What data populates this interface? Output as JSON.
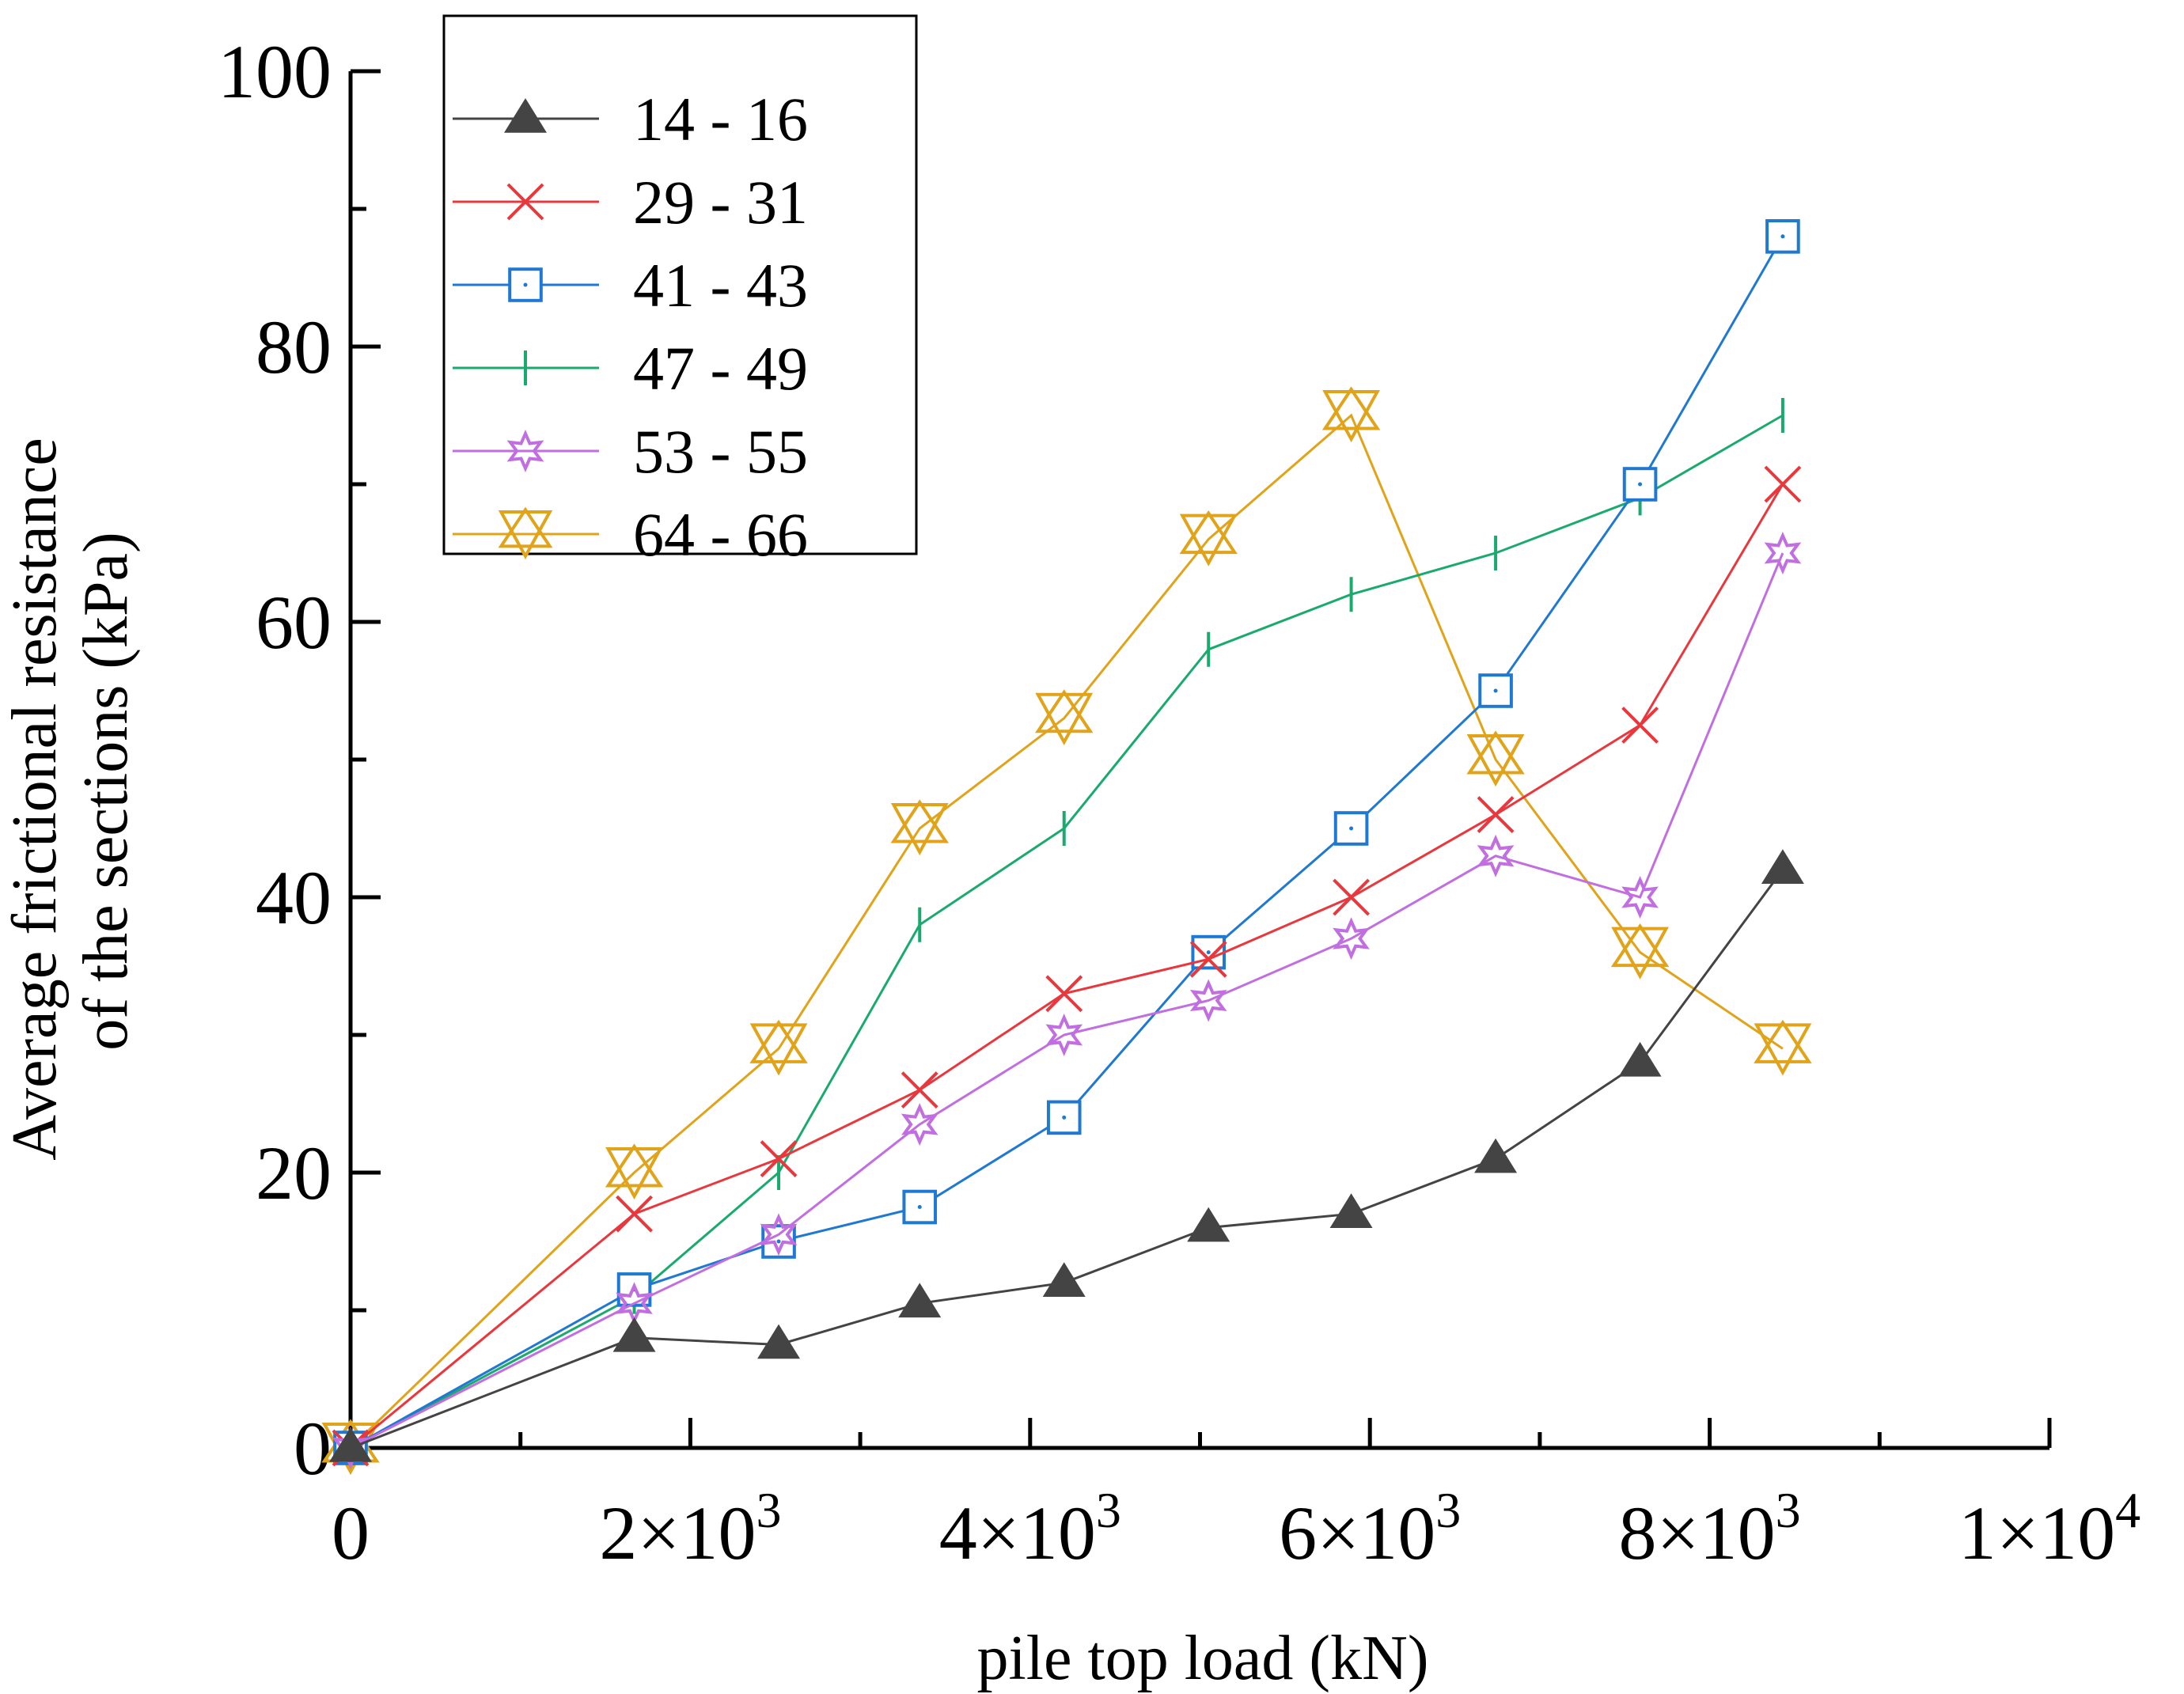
{
  "chart_data": {
    "type": "line",
    "title": "",
    "xlabel": "pile top load (kN)",
    "ylabel_line1": "Average frictional resistance",
    "ylabel_line2": "of the sections (kPa)",
    "xlim": [
      0,
      10000
    ],
    "ylim": [
      0,
      100
    ],
    "x_ticks": [
      {
        "value": 0,
        "mantissa": "0",
        "exponent": ""
      },
      {
        "value": 2000,
        "mantissa": "2×10",
        "exponent": "3"
      },
      {
        "value": 4000,
        "mantissa": "4×10",
        "exponent": "3"
      },
      {
        "value": 6000,
        "mantissa": "6×10",
        "exponent": "3"
      },
      {
        "value": 8000,
        "mantissa": "8×10",
        "exponent": "3"
      },
      {
        "value": 10000,
        "mantissa": "1×10",
        "exponent": "4"
      }
    ],
    "y_ticks": [
      0,
      20,
      40,
      60,
      80,
      100
    ],
    "grid": false,
    "legend_position": "top-left",
    "x": [
      0,
      1670,
      2520,
      3350,
      4200,
      5050,
      5890,
      6740,
      7590,
      8430
    ],
    "series": [
      {
        "name": "14 - 16",
        "color": "#444444",
        "marker": "triangle-filled",
        "values": [
          0,
          8,
          7.5,
          10.5,
          12,
          16,
          17,
          21,
          28,
          42
        ]
      },
      {
        "name": "29 - 31",
        "color": "#e8383d",
        "marker": "x",
        "values": [
          0,
          17,
          21,
          26,
          33,
          35.5,
          40,
          46,
          52.5,
          70
        ]
      },
      {
        "name": "41 - 43",
        "color": "#1f78d1",
        "marker": "square-dot",
        "values": [
          0,
          11.5,
          15,
          17.5,
          24,
          36,
          45,
          55,
          70,
          88
        ]
      },
      {
        "name": "47 - 49",
        "color": "#1aaa6e",
        "marker": "vline",
        "values": [
          0,
          11,
          20,
          38,
          45,
          58,
          62,
          65,
          69,
          75
        ]
      },
      {
        "name": "53 - 55",
        "color": "#c06ee0",
        "marker": "star",
        "values": [
          0,
          10.5,
          15.5,
          23.5,
          30,
          32.5,
          37,
          43,
          40,
          65
        ]
      },
      {
        "name": "64 - 66",
        "color": "#e0a31a",
        "marker": "hourglass",
        "values": [
          0,
          20,
          29,
          45,
          53,
          66,
          75,
          50,
          36,
          29
        ]
      }
    ]
  }
}
